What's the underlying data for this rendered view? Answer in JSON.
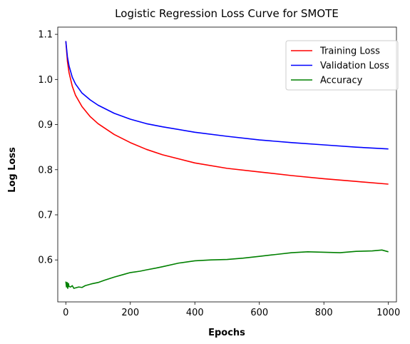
{
  "chart_data": {
    "type": "line",
    "title": "Logistic Regression Loss Curve for SMOTE",
    "xlabel": "Epochs",
    "ylabel": "Log Loss",
    "xlim": [
      -25,
      1025
    ],
    "ylim": [
      0.507,
      1.116
    ],
    "xticks": [
      0,
      200,
      400,
      600,
      800,
      1000
    ],
    "yticks": [
      0.6,
      0.7,
      0.8,
      0.9,
      1.0,
      1.1
    ],
    "xtick_labels": [
      "0",
      "200",
      "400",
      "600",
      "800",
      "1000"
    ],
    "ytick_labels": [
      "0.6",
      "0.7",
      "0.8",
      "0.9",
      "1.0",
      "1.1"
    ],
    "grid": false,
    "legend_position": "top-right",
    "series": [
      {
        "name": "Training Loss",
        "color": "#ff0000",
        "x": [
          0,
          5,
          10,
          20,
          30,
          50,
          75,
          100,
          150,
          200,
          250,
          300,
          400,
          500,
          600,
          700,
          800,
          900,
          1000
        ],
        "y": [
          1.085,
          1.04,
          1.015,
          0.985,
          0.965,
          0.94,
          0.918,
          0.902,
          0.878,
          0.86,
          0.845,
          0.833,
          0.815,
          0.803,
          0.795,
          0.787,
          0.78,
          0.774,
          0.768
        ]
      },
      {
        "name": "Validation Loss",
        "color": "#0000ff",
        "x": [
          0,
          5,
          10,
          20,
          30,
          50,
          75,
          100,
          150,
          200,
          250,
          300,
          400,
          500,
          600,
          700,
          800,
          900,
          1000
        ],
        "y": [
          1.085,
          1.05,
          1.03,
          1.005,
          0.99,
          0.97,
          0.955,
          0.943,
          0.925,
          0.912,
          0.902,
          0.895,
          0.883,
          0.874,
          0.866,
          0.86,
          0.855,
          0.85,
          0.846
        ]
      },
      {
        "name": "Accuracy",
        "color": "#008000",
        "x": [
          0,
          2,
          4,
          6,
          8,
          10,
          15,
          20,
          25,
          30,
          40,
          50,
          60,
          70,
          80,
          100,
          120,
          150,
          180,
          200,
          230,
          250,
          280,
          300,
          350,
          400,
          450,
          500,
          550,
          600,
          650,
          700,
          750,
          800,
          850,
          900,
          950,
          980,
          1000
        ],
        "y": [
          0.552,
          0.54,
          0.55,
          0.537,
          0.548,
          0.541,
          0.54,
          0.543,
          0.537,
          0.538,
          0.54,
          0.539,
          0.543,
          0.545,
          0.547,
          0.55,
          0.555,
          0.562,
          0.568,
          0.572,
          0.575,
          0.578,
          0.582,
          0.585,
          0.593,
          0.598,
          0.6,
          0.601,
          0.604,
          0.608,
          0.612,
          0.616,
          0.618,
          0.617,
          0.616,
          0.619,
          0.62,
          0.622,
          0.618
        ]
      }
    ]
  }
}
